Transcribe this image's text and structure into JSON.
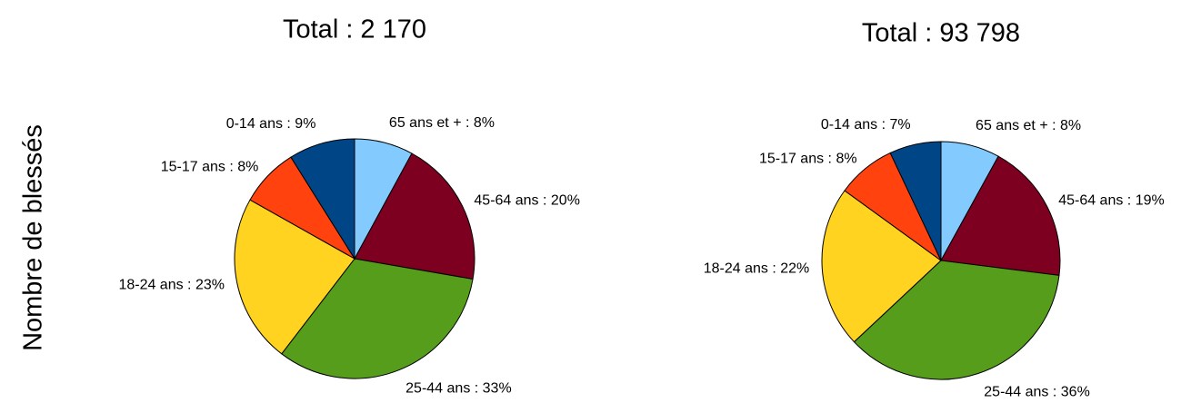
{
  "chart_data": [
    {
      "type": "pie",
      "title": "Total : 2 170",
      "ylabel": "Nombre de blessés",
      "values": [
        8,
        20,
        33,
        23,
        8,
        9
      ],
      "value_labels": [
        "65 ans et + : 8%",
        "45-64 ans : 20%",
        "25-44 ans : 33%",
        "18-24 ans : 23%",
        "15-17  ans : 8%",
        "0-14 ans : 9%"
      ],
      "colors": [
        "#83caff",
        "#7e0021",
        "#579d1c",
        "#ffd320",
        "#ff420e",
        "#004586"
      ]
    },
    {
      "type": "pie",
      "title": "Total : 93 798",
      "values": [
        8,
        19,
        36,
        22,
        8,
        7
      ],
      "value_labels": [
        "65 ans et + : 8%",
        "45-64 ans : 19%",
        "25-44 ans : 36%",
        "18-24 ans : 22%",
        "15-17  ans : 8%",
        "0-14 ans : 7%"
      ],
      "colors": [
        "#83caff",
        "#7e0021",
        "#579d1c",
        "#ffd320",
        "#ff420e",
        "#004586"
      ]
    }
  ]
}
